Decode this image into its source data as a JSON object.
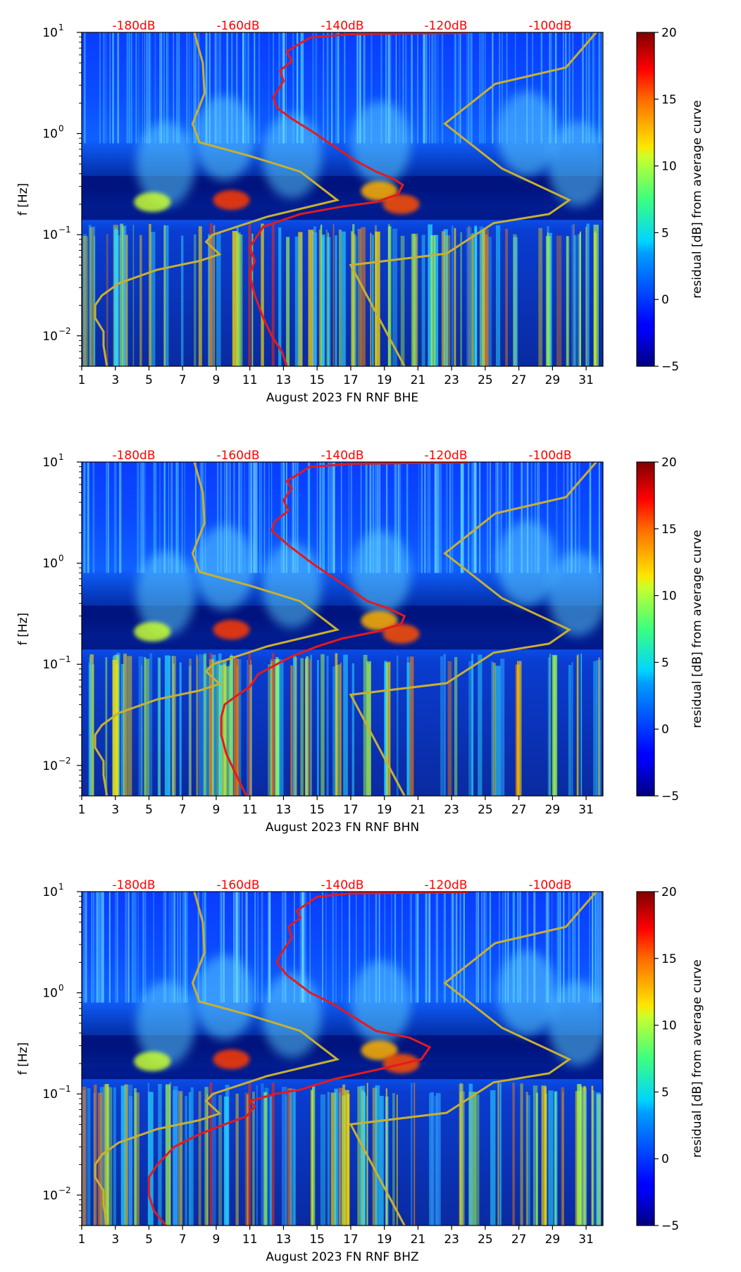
{
  "chart_data": [
    {
      "type": "heatmap",
      "channel": "BHE",
      "xlabel": "August 2023 FN RNF  BHE",
      "ylabel": "f [Hz]",
      "x_ticks": [
        "1",
        "3",
        "5",
        "7",
        "9",
        "11",
        "13",
        "15",
        "17",
        "19",
        "21",
        "23",
        "25",
        "27",
        "29",
        "31"
      ],
      "xlim": [
        1,
        32
      ],
      "y_scale": "log",
      "ylim": [
        0.005,
        10
      ],
      "y_ticks": [
        {
          "value": 10,
          "base": "10",
          "exp": "1"
        },
        {
          "value": 1,
          "base": "10",
          "exp": "0"
        },
        {
          "value": 0.1,
          "base": "10",
          "exp": "−1"
        },
        {
          "value": 0.01,
          "base": "10",
          "exp": "−2"
        }
      ],
      "top_labels": [
        "-180dB",
        "-160dB",
        "-140dB",
        "-120dB",
        "-100dB"
      ],
      "colorbar": {
        "label": "residual [dB] from average curve",
        "min": -5,
        "max": 20,
        "ticks": [
          "20",
          "15",
          "10",
          "5",
          "0",
          "−5"
        ],
        "colormap": "jet"
      },
      "red_curve": [
        [
          13.2,
          0.005
        ],
        [
          12.9,
          0.007
        ],
        [
          12.3,
          0.01
        ],
        [
          11.8,
          0.015
        ],
        [
          11.3,
          0.025
        ],
        [
          11.0,
          0.04
        ],
        [
          11.3,
          0.055
        ],
        [
          11.0,
          0.075
        ],
        [
          11.8,
          0.12
        ],
        [
          14.0,
          0.16
        ],
        [
          16.5,
          0.19
        ],
        [
          18.5,
          0.21
        ],
        [
          19.8,
          0.25
        ],
        [
          20.1,
          0.31
        ],
        [
          19.5,
          0.36
        ],
        [
          18.5,
          0.42
        ],
        [
          17.2,
          0.55
        ],
        [
          16.0,
          0.75
        ],
        [
          14.9,
          1.0
        ],
        [
          13.5,
          1.4
        ],
        [
          12.6,
          1.8
        ],
        [
          12.4,
          2.3
        ],
        [
          13.0,
          3.3
        ],
        [
          12.8,
          4.2
        ],
        [
          13.5,
          5.2
        ],
        [
          13.2,
          6.5
        ],
        [
          14.0,
          7.8
        ],
        [
          14.6,
          8.9
        ],
        [
          17.0,
          9.6
        ],
        [
          24.0,
          9.9
        ]
      ],
      "noise_model_low": [
        [
          2.5,
          0.005
        ],
        [
          2.3,
          0.008
        ],
        [
          2.3,
          0.011
        ],
        [
          1.8,
          0.015
        ],
        [
          1.8,
          0.02
        ],
        [
          2.2,
          0.025
        ],
        [
          3.2,
          0.033
        ],
        [
          5.5,
          0.045
        ],
        [
          8.0,
          0.055
        ],
        [
          9.2,
          0.064
        ],
        [
          8.4,
          0.085
        ],
        [
          8.8,
          0.1
        ],
        [
          12.0,
          0.15
        ],
        [
          16.2,
          0.22
        ],
        [
          14.0,
          0.42
        ],
        [
          11.0,
          0.6
        ],
        [
          8.0,
          0.82
        ],
        [
          7.6,
          1.25
        ],
        [
          8.3,
          2.5
        ],
        [
          8.2,
          5.0
        ],
        [
          7.7,
          10.0
        ]
      ],
      "noise_model_high": [
        [
          20.2,
          0.005
        ],
        [
          17.0,
          0.05
        ],
        [
          22.7,
          0.065
        ],
        [
          25.5,
          0.13
        ],
        [
          28.8,
          0.16
        ],
        [
          30.0,
          0.22
        ],
        [
          26.0,
          0.45
        ],
        [
          22.6,
          1.25
        ],
        [
          25.6,
          3.1
        ],
        [
          29.8,
          4.5
        ],
        [
          31.6,
          10.0
        ]
      ]
    },
    {
      "type": "heatmap",
      "channel": "BHN",
      "xlabel": "August 2023 FN RNF  BHN",
      "ylabel": "f [Hz]",
      "x_ticks": [
        "1",
        "3",
        "5",
        "7",
        "9",
        "11",
        "13",
        "15",
        "17",
        "19",
        "21",
        "23",
        "25",
        "27",
        "29",
        "31"
      ],
      "xlim": [
        1,
        32
      ],
      "y_scale": "log",
      "ylim": [
        0.005,
        10
      ],
      "y_ticks": [
        {
          "value": 10,
          "base": "10",
          "exp": "1"
        },
        {
          "value": 1,
          "base": "10",
          "exp": "0"
        },
        {
          "value": 0.1,
          "base": "10",
          "exp": "−1"
        },
        {
          "value": 0.01,
          "base": "10",
          "exp": "−2"
        }
      ],
      "top_labels": [
        "-180dB",
        "-160dB",
        "-140dB",
        "-120dB",
        "-100dB"
      ],
      "colorbar": {
        "label": "residual [dB] from average curve",
        "min": -5,
        "max": 20,
        "ticks": [
          "20",
          "15",
          "10",
          "5",
          "0",
          "−5"
        ],
        "colormap": "jet"
      },
      "red_curve": [
        [
          10.8,
          0.005
        ],
        [
          10.2,
          0.008
        ],
        [
          9.6,
          0.013
        ],
        [
          9.3,
          0.02
        ],
        [
          9.3,
          0.03
        ],
        [
          9.5,
          0.04
        ],
        [
          10.3,
          0.05
        ],
        [
          11.0,
          0.06
        ],
        [
          11.5,
          0.08
        ],
        [
          13.5,
          0.12
        ],
        [
          15.0,
          0.15
        ],
        [
          16.5,
          0.18
        ],
        [
          18.5,
          0.21
        ],
        [
          20.0,
          0.25
        ],
        [
          20.2,
          0.3
        ],
        [
          19.2,
          0.36
        ],
        [
          18.0,
          0.42
        ],
        [
          17.0,
          0.55
        ],
        [
          15.8,
          0.75
        ],
        [
          14.7,
          1.0
        ],
        [
          13.3,
          1.5
        ],
        [
          12.3,
          2.1
        ],
        [
          12.5,
          2.6
        ],
        [
          13.3,
          3.3
        ],
        [
          13.0,
          4.2
        ],
        [
          13.5,
          5.5
        ],
        [
          13.2,
          6.5
        ],
        [
          14.0,
          7.8
        ],
        [
          14.5,
          8.9
        ],
        [
          17.0,
          9.6
        ],
        [
          24.0,
          9.9
        ]
      ],
      "noise_model_low": [
        [
          2.5,
          0.005
        ],
        [
          2.3,
          0.008
        ],
        [
          2.3,
          0.011
        ],
        [
          1.8,
          0.015
        ],
        [
          1.8,
          0.02
        ],
        [
          2.2,
          0.025
        ],
        [
          3.2,
          0.033
        ],
        [
          5.5,
          0.045
        ],
        [
          8.0,
          0.055
        ],
        [
          9.2,
          0.064
        ],
        [
          8.4,
          0.085
        ],
        [
          8.8,
          0.1
        ],
        [
          12.0,
          0.15
        ],
        [
          16.2,
          0.22
        ],
        [
          14.0,
          0.42
        ],
        [
          11.0,
          0.6
        ],
        [
          8.0,
          0.82
        ],
        [
          7.6,
          1.25
        ],
        [
          8.3,
          2.5
        ],
        [
          8.2,
          5.0
        ],
        [
          7.7,
          10.0
        ]
      ],
      "noise_model_high": [
        [
          20.2,
          0.005
        ],
        [
          17.0,
          0.05
        ],
        [
          22.7,
          0.065
        ],
        [
          25.5,
          0.13
        ],
        [
          28.8,
          0.16
        ],
        [
          30.0,
          0.22
        ],
        [
          26.0,
          0.45
        ],
        [
          22.6,
          1.25
        ],
        [
          25.6,
          3.1
        ],
        [
          29.8,
          4.5
        ],
        [
          31.6,
          10.0
        ]
      ]
    },
    {
      "type": "heatmap",
      "channel": "BHZ",
      "xlabel": "August 2023 FN RNF  BHZ",
      "ylabel": "f [Hz]",
      "x_ticks": [
        "1",
        "3",
        "5",
        "7",
        "9",
        "11",
        "13",
        "15",
        "17",
        "19",
        "21",
        "23",
        "25",
        "27",
        "29",
        "31"
      ],
      "xlim": [
        1,
        32
      ],
      "y_scale": "log",
      "ylim": [
        0.005,
        10
      ],
      "y_ticks": [
        {
          "value": 10,
          "base": "10",
          "exp": "1"
        },
        {
          "value": 1,
          "base": "10",
          "exp": "0"
        },
        {
          "value": 0.1,
          "base": "10",
          "exp": "−1"
        },
        {
          "value": 0.01,
          "base": "10",
          "exp": "−2"
        }
      ],
      "top_labels": [
        "-180dB",
        "-160dB",
        "-140dB",
        "-120dB",
        "-100dB"
      ],
      "colorbar": {
        "label": "residual [dB] from average curve",
        "min": -5,
        "max": 20,
        "ticks": [
          "20",
          "15",
          "10",
          "5",
          "0",
          "−5"
        ],
        "colormap": "jet"
      },
      "red_curve": [
        [
          6.0,
          0.005
        ],
        [
          5.3,
          0.007
        ],
        [
          5.0,
          0.01
        ],
        [
          5.0,
          0.015
        ],
        [
          5.5,
          0.02
        ],
        [
          6.5,
          0.03
        ],
        [
          8.0,
          0.04
        ],
        [
          9.5,
          0.05
        ],
        [
          10.8,
          0.06
        ],
        [
          11.3,
          0.075
        ],
        [
          11.0,
          0.085
        ],
        [
          12.5,
          0.1
        ],
        [
          14.0,
          0.11
        ],
        [
          16.0,
          0.14
        ],
        [
          19.0,
          0.18
        ],
        [
          21.2,
          0.22
        ],
        [
          21.7,
          0.29
        ],
        [
          20.5,
          0.36
        ],
        [
          18.5,
          0.42
        ],
        [
          17.0,
          0.6
        ],
        [
          15.8,
          0.8
        ],
        [
          14.6,
          1.0
        ],
        [
          13.2,
          1.5
        ],
        [
          12.6,
          2.0
        ],
        [
          12.9,
          2.5
        ],
        [
          13.5,
          3.5
        ],
        [
          13.3,
          4.5
        ],
        [
          14.0,
          5.5
        ],
        [
          13.8,
          6.5
        ],
        [
          14.5,
          7.8
        ],
        [
          15.0,
          8.9
        ],
        [
          17.0,
          9.6
        ],
        [
          24.0,
          9.9
        ]
      ],
      "noise_model_low": [
        [
          2.5,
          0.005
        ],
        [
          2.3,
          0.008
        ],
        [
          2.3,
          0.011
        ],
        [
          1.8,
          0.015
        ],
        [
          1.8,
          0.02
        ],
        [
          2.2,
          0.025
        ],
        [
          3.2,
          0.033
        ],
        [
          5.5,
          0.045
        ],
        [
          8.0,
          0.055
        ],
        [
          9.2,
          0.064
        ],
        [
          8.4,
          0.085
        ],
        [
          8.8,
          0.1
        ],
        [
          12.0,
          0.15
        ],
        [
          16.2,
          0.22
        ],
        [
          14.0,
          0.42
        ],
        [
          11.0,
          0.6
        ],
        [
          8.0,
          0.82
        ],
        [
          7.6,
          1.25
        ],
        [
          8.3,
          2.5
        ],
        [
          8.2,
          5.0
        ],
        [
          7.7,
          10.0
        ]
      ],
      "noise_model_high": [
        [
          20.2,
          0.005
        ],
        [
          17.0,
          0.05
        ],
        [
          22.7,
          0.065
        ],
        [
          25.5,
          0.13
        ],
        [
          28.8,
          0.16
        ],
        [
          30.0,
          0.22
        ],
        [
          26.0,
          0.45
        ],
        [
          22.6,
          1.25
        ],
        [
          25.6,
          3.1
        ],
        [
          29.8,
          4.5
        ],
        [
          31.6,
          10.0
        ]
      ]
    }
  ],
  "colors": {
    "red_curve": "#e41a1c",
    "noise_model": "#c8b030",
    "top_label": "#ff0000",
    "axis": "#000000",
    "background": "#ffffff"
  }
}
